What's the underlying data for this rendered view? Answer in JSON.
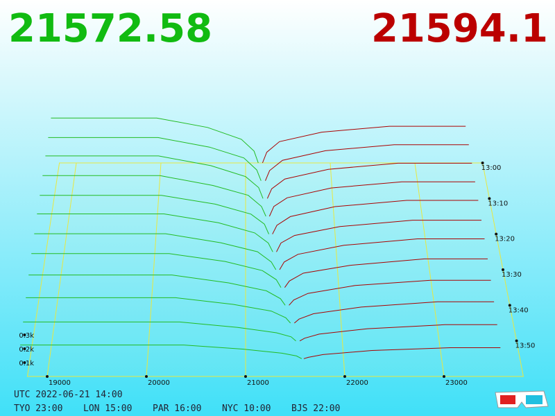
{
  "header": {
    "bid": 21572.58,
    "ask": 21594.1,
    "bid_color": "#11bb11",
    "ask_color": "#bb0000"
  },
  "chart_data": {
    "type": "depth3d",
    "xlim": [
      18800,
      23800
    ],
    "xticks": [
      19000,
      20000,
      21000,
      22000,
      23000
    ],
    "tlim": [
      0,
      60
    ],
    "tticks": [
      {
        "value": 0,
        "label": "13:00"
      },
      {
        "value": 10,
        "label": "13:10"
      },
      {
        "value": 20,
        "label": "13:20"
      },
      {
        "value": 30,
        "label": "13:30"
      },
      {
        "value": 40,
        "label": "13:40"
      },
      {
        "value": 50,
        "label": "13:50"
      }
    ],
    "zticks": [
      {
        "value": 100,
        "label": "0.1k"
      },
      {
        "value": 200,
        "label": "0.2k"
      },
      {
        "value": 300,
        "label": "0.3k"
      }
    ],
    "bid_color": "#22bb22",
    "ask_color": "#aa0000",
    "snapshots": [
      {
        "minute": 0,
        "bid_prices": [
          21150,
          21100,
          20950,
          20550,
          19950,
          18700
        ],
        "bid_depths": [
          0,
          100,
          200,
          300,
          380,
          380
        ],
        "ask_prices": [
          21200,
          21250,
          21400,
          21900,
          22700,
          23600
        ],
        "ask_depths": [
          0,
          90,
          180,
          260,
          310,
          310
        ]
      },
      {
        "minute": 5,
        "bid_prices": [
          21180,
          21130,
          20980,
          20580,
          19980,
          18700
        ],
        "bid_depths": [
          0,
          90,
          190,
          280,
          360,
          360
        ],
        "ask_prices": [
          21230,
          21280,
          21430,
          21930,
          22730,
          23600
        ],
        "ask_depths": [
          0,
          85,
          170,
          250,
          300,
          300
        ]
      },
      {
        "minute": 10,
        "bid_prices": [
          21200,
          21150,
          21000,
          20600,
          20000,
          18700
        ],
        "bid_depths": [
          0,
          90,
          180,
          270,
          350,
          350
        ],
        "ask_prices": [
          21250,
          21300,
          21450,
          21950,
          22750,
          23600
        ],
        "ask_depths": [
          0,
          80,
          160,
          240,
          290,
          290
        ]
      },
      {
        "minute": 15,
        "bid_prices": [
          21230,
          21180,
          21030,
          20630,
          20030,
          18700
        ],
        "bid_depths": [
          0,
          80,
          170,
          250,
          330,
          330
        ],
        "ask_prices": [
          21270,
          21320,
          21470,
          21970,
          22770,
          23600
        ],
        "ask_depths": [
          0,
          80,
          150,
          230,
          280,
          280
        ]
      },
      {
        "minute": 20,
        "bid_prices": [
          21260,
          21210,
          21060,
          20660,
          20060,
          18700
        ],
        "bid_depths": [
          0,
          80,
          160,
          240,
          310,
          310
        ],
        "ask_prices": [
          21300,
          21350,
          21500,
          22000,
          22800,
          23600
        ],
        "ask_depths": [
          0,
          70,
          140,
          220,
          270,
          270
        ]
      },
      {
        "minute": 25,
        "bid_prices": [
          21300,
          21250,
          21100,
          20700,
          20100,
          18700
        ],
        "bid_depths": [
          0,
          70,
          150,
          230,
          300,
          300
        ],
        "ask_prices": [
          21340,
          21390,
          21540,
          22040,
          22840,
          23600
        ],
        "ask_depths": [
          0,
          70,
          130,
          200,
          250,
          250
        ]
      },
      {
        "minute": 30,
        "bid_prices": [
          21330,
          21280,
          21130,
          20730,
          20130,
          18700
        ],
        "bid_depths": [
          0,
          60,
          140,
          210,
          280,
          280
        ],
        "ask_prices": [
          21370,
          21420,
          21570,
          22070,
          22870,
          23600
        ],
        "ask_depths": [
          0,
          60,
          120,
          190,
          240,
          240
        ]
      },
      {
        "minute": 35,
        "bid_prices": [
          21380,
          21330,
          21180,
          20780,
          20180,
          18700
        ],
        "bid_depths": [
          0,
          60,
          130,
          200,
          260,
          260
        ],
        "ask_prices": [
          21420,
          21470,
          21620,
          22120,
          22920,
          23600
        ],
        "ask_depths": [
          0,
          50,
          110,
          170,
          220,
          220
        ]
      },
      {
        "minute": 40,
        "bid_prices": [
          21420,
          21370,
          21220,
          20820,
          20220,
          18700
        ],
        "bid_depths": [
          0,
          50,
          110,
          170,
          230,
          230
        ],
        "ask_prices": [
          21460,
          21510,
          21660,
          22160,
          22960,
          23600
        ],
        "ask_depths": [
          0,
          40,
          90,
          150,
          190,
          190
        ]
      },
      {
        "minute": 45,
        "bid_prices": [
          21470,
          21420,
          21270,
          20870,
          20270,
          18700
        ],
        "bid_depths": [
          0,
          40,
          90,
          140,
          190,
          190
        ],
        "ask_prices": [
          21510,
          21560,
          21710,
          22210,
          23010,
          23600
        ],
        "ask_depths": [
          0,
          30,
          70,
          120,
          160,
          160
        ]
      },
      {
        "minute": 50,
        "bid_prices": [
          21520,
          21470,
          21320,
          20920,
          20320,
          18700
        ],
        "bid_depths": [
          0,
          30,
          60,
          100,
          140,
          140
        ],
        "ask_prices": [
          21560,
          21610,
          21760,
          22260,
          23060,
          23600
        ],
        "ask_depths": [
          0,
          20,
          50,
          90,
          120,
          120
        ]
      },
      {
        "minute": 55,
        "bid_prices": [
          21572.58,
          21520,
          21370,
          20970,
          20370,
          18700
        ],
        "bid_depths": [
          0,
          20,
          40,
          70,
          100,
          100
        ],
        "ask_prices": [
          21594.1,
          21640,
          21790,
          22290,
          23090,
          23600
        ],
        "ask_depths": [
          0,
          10,
          30,
          60,
          80,
          80
        ]
      }
    ]
  },
  "footer": {
    "utc": "UTC 2022-06-21 14:00",
    "cities": [
      "TYO 23:00",
      "LON 15:00",
      "PAR 16:00",
      "NYC 10:00",
      "BJS 22:00"
    ]
  }
}
